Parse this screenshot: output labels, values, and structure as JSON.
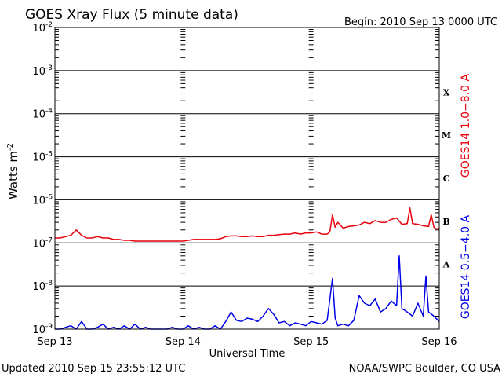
{
  "chart_data": {
    "type": "line",
    "title": "GOES Xray Flux (5 minute data)",
    "begin_label": "Begin:  2010 Sep 13 0000 UTC",
    "xlabel": "Universal Time",
    "ylabel_main": "Watts m",
    "ylabel_sup": "-2",
    "x_unit": "hours since 2010 Sep 13 0000 UTC",
    "xlim": [
      0,
      72
    ],
    "x_ticks": [
      {
        "x": 0,
        "label": "Sep 13"
      },
      {
        "x": 24,
        "label": "Sep 14"
      },
      {
        "x": 48,
        "label": "Sep 15"
      },
      {
        "x": 72,
        "label": "Sep 16"
      }
    ],
    "y_scale": "log",
    "ylim": [
      1e-09,
      0.01
    ],
    "y_ticks": [
      {
        "exp": -2,
        "base": "10",
        "sup": "-2"
      },
      {
        "exp": -3,
        "base": "10",
        "sup": "-3"
      },
      {
        "exp": -4,
        "base": "10",
        "sup": "-4"
      },
      {
        "exp": -5,
        "base": "10",
        "sup": "-5"
      },
      {
        "exp": -6,
        "base": "10",
        "sup": "-6"
      },
      {
        "exp": -7,
        "base": "10",
        "sup": "-7"
      },
      {
        "exp": -8,
        "base": "10",
        "sup": "-8"
      },
      {
        "exp": -9,
        "base": "10",
        "sup": "-9"
      }
    ],
    "flare_classes": [
      {
        "label": "X",
        "exp": -3.5
      },
      {
        "label": "M",
        "exp": -4.5
      },
      {
        "label": "C",
        "exp": -5.5
      },
      {
        "label": "B",
        "exp": -6.5
      },
      {
        "label": "A",
        "exp": -7.5
      }
    ],
    "grid": "horizontal",
    "series": [
      {
        "name": "GOES14 1.0−8.0 A",
        "color": "#e8000b",
        "points": [
          [
            0,
            1.3e-07
          ],
          [
            1,
            1.3e-07
          ],
          [
            2,
            1.4e-07
          ],
          [
            3,
            1.5e-07
          ],
          [
            4,
            2e-07
          ],
          [
            5,
            1.5e-07
          ],
          [
            6,
            1.3e-07
          ],
          [
            7,
            1.3e-07
          ],
          [
            8,
            1.4e-07
          ],
          [
            9,
            1.3e-07
          ],
          [
            10,
            1.3e-07
          ],
          [
            11,
            1.2e-07
          ],
          [
            12,
            1.2e-07
          ],
          [
            13,
            1.15e-07
          ],
          [
            14,
            1.15e-07
          ],
          [
            15,
            1.1e-07
          ],
          [
            16,
            1.1e-07
          ],
          [
            17,
            1.1e-07
          ],
          [
            18,
            1.1e-07
          ],
          [
            19,
            1.1e-07
          ],
          [
            20,
            1.1e-07
          ],
          [
            21,
            1.1e-07
          ],
          [
            22,
            1.1e-07
          ],
          [
            23,
            1.1e-07
          ],
          [
            24,
            1.1e-07
          ],
          [
            25,
            1.15e-07
          ],
          [
            26,
            1.2e-07
          ],
          [
            27,
            1.2e-07
          ],
          [
            28,
            1.2e-07
          ],
          [
            29,
            1.2e-07
          ],
          [
            30,
            1.2e-07
          ],
          [
            31,
            1.25e-07
          ],
          [
            32,
            1.4e-07
          ],
          [
            33,
            1.45e-07
          ],
          [
            34,
            1.45e-07
          ],
          [
            35,
            1.4e-07
          ],
          [
            36,
            1.4e-07
          ],
          [
            37,
            1.45e-07
          ],
          [
            38,
            1.4e-07
          ],
          [
            39,
            1.4e-07
          ],
          [
            40,
            1.5e-07
          ],
          [
            41,
            1.5e-07
          ],
          [
            42,
            1.55e-07
          ],
          [
            43,
            1.6e-07
          ],
          [
            44,
            1.6e-07
          ],
          [
            45,
            1.7e-07
          ],
          [
            46,
            1.6e-07
          ],
          [
            47,
            1.7e-07
          ],
          [
            48,
            1.7e-07
          ],
          [
            49,
            1.8e-07
          ],
          [
            50,
            1.6e-07
          ],
          [
            51,
            1.6e-07
          ],
          [
            51.5,
            1.8e-07
          ],
          [
            52,
            4.5e-07
          ],
          [
            52.5,
            2.3e-07
          ],
          [
            53,
            3e-07
          ],
          [
            54,
            2.2e-07
          ],
          [
            55,
            2.4e-07
          ],
          [
            56,
            2.5e-07
          ],
          [
            57,
            2.6e-07
          ],
          [
            58,
            3e-07
          ],
          [
            59,
            2.8e-07
          ],
          [
            60,
            3.3e-07
          ],
          [
            61,
            3e-07
          ],
          [
            62,
            3e-07
          ],
          [
            63,
            3.5e-07
          ],
          [
            64,
            3.8e-07
          ],
          [
            65,
            2.7e-07
          ],
          [
            66,
            2.8e-07
          ],
          [
            66.5,
            6.5e-07
          ],
          [
            67,
            2.8e-07
          ],
          [
            68,
            2.7e-07
          ],
          [
            69,
            2.5e-07
          ],
          [
            70,
            2.4e-07
          ],
          [
            70.5,
            4.5e-07
          ],
          [
            71,
            2.3e-07
          ],
          [
            71.5,
            2.1e-07
          ],
          [
            72,
            2.2e-07
          ]
        ]
      },
      {
        "name": "GOES14 0.5−4.0 A",
        "color": "#0000e8",
        "points": [
          [
            0,
            1e-09
          ],
          [
            1,
            1e-09
          ],
          [
            2,
            1.1e-09
          ],
          [
            3,
            1.2e-09
          ],
          [
            4,
            1e-09
          ],
          [
            5,
            1.5e-09
          ],
          [
            6,
            1e-09
          ],
          [
            7,
            1e-09
          ],
          [
            8,
            1.1e-09
          ],
          [
            9,
            1.3e-09
          ],
          [
            10,
            1e-09
          ],
          [
            11,
            1.1e-09
          ],
          [
            12,
            1e-09
          ],
          [
            13,
            1.2e-09
          ],
          [
            14,
            1e-09
          ],
          [
            15,
            1.3e-09
          ],
          [
            16,
            1e-09
          ],
          [
            17,
            1.1e-09
          ],
          [
            18,
            1e-09
          ],
          [
            19,
            1e-09
          ],
          [
            20,
            1e-09
          ],
          [
            21,
            1e-09
          ],
          [
            22,
            1.1e-09
          ],
          [
            23,
            1e-09
          ],
          [
            24,
            1e-09
          ],
          [
            25,
            1.2e-09
          ],
          [
            26,
            1e-09
          ],
          [
            27,
            1.1e-09
          ],
          [
            28,
            1e-09
          ],
          [
            29,
            1e-09
          ],
          [
            30,
            1.2e-09
          ],
          [
            31,
            1e-09
          ],
          [
            32,
            1.5e-09
          ],
          [
            33,
            2.5e-09
          ],
          [
            34,
            1.6e-09
          ],
          [
            35,
            1.5e-09
          ],
          [
            36,
            1.8e-09
          ],
          [
            37,
            1.7e-09
          ],
          [
            38,
            1.5e-09
          ],
          [
            39,
            2e-09
          ],
          [
            40,
            3e-09
          ],
          [
            41,
            2.2e-09
          ],
          [
            42,
            1.4e-09
          ],
          [
            43,
            1.5e-09
          ],
          [
            44,
            1.2e-09
          ],
          [
            45,
            1.4e-09
          ],
          [
            46,
            1.3e-09
          ],
          [
            47,
            1.2e-09
          ],
          [
            48,
            1.5e-09
          ],
          [
            49,
            1.4e-09
          ],
          [
            50,
            1.3e-09
          ],
          [
            51,
            1.6e-09
          ],
          [
            52,
            1.5e-08
          ],
          [
            52.5,
            1.8e-09
          ],
          [
            53,
            1.2e-09
          ],
          [
            54,
            1.3e-09
          ],
          [
            55,
            1.2e-09
          ],
          [
            56,
            1.6e-09
          ],
          [
            57,
            6e-09
          ],
          [
            58,
            4e-09
          ],
          [
            59,
            3.5e-09
          ],
          [
            60,
            5e-09
          ],
          [
            61,
            2.5e-09
          ],
          [
            62,
            3e-09
          ],
          [
            63,
            4.5e-09
          ],
          [
            64,
            3.5e-09
          ],
          [
            64.5,
            5e-08
          ],
          [
            65,
            3e-09
          ],
          [
            66,
            2.5e-09
          ],
          [
            67,
            2e-09
          ],
          [
            68,
            4e-09
          ],
          [
            69,
            2e-09
          ],
          [
            69.5,
            1.7e-08
          ],
          [
            70,
            2.5e-09
          ],
          [
            71,
            2e-09
          ],
          [
            72,
            1.5e-09
          ]
        ]
      }
    ]
  },
  "footer": {
    "updated": "Updated 2010 Sep 15 23:55:12 UTC",
    "source": "NOAA/SWPC Boulder, CO USA"
  }
}
